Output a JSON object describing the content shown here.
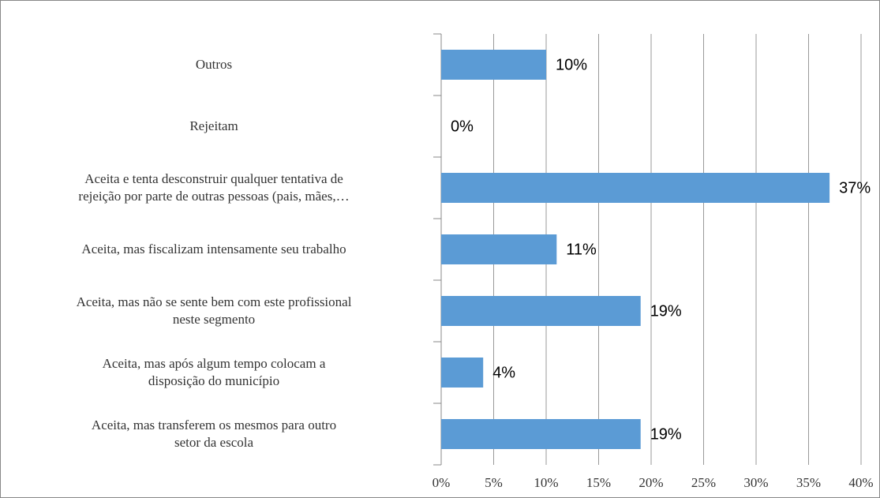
{
  "chart_data": {
    "type": "barh",
    "categories": [
      "Outros",
      "Rejeitam",
      "Aceita e tenta desconstruir qualquer tentativa de\nrejeição por parte de outras pessoas (pais, mães,…",
      "Aceita, mas fiscalizam intensamente seu trabalho",
      "Aceita, mas não se sente bem com este profissional\nneste segmento",
      "Aceita, mas após algum tempo colocam a\ndisposição do município",
      "Aceita, mas transferem os mesmos para outro\nsetor da escola"
    ],
    "values": [
      10,
      0,
      37,
      11,
      19,
      4,
      19
    ],
    "value_labels": [
      "10%",
      "0%",
      "37%",
      "11%",
      "19%",
      "4%",
      "19%"
    ],
    "color": "#5b9bd5",
    "xlim": [
      0,
      40
    ],
    "xticks": [
      {
        "value": 0,
        "label": "0%"
      },
      {
        "value": 5,
        "label": "5%"
      },
      {
        "value": 10,
        "label": "10%"
      },
      {
        "value": 15,
        "label": "15%"
      },
      {
        "value": 20,
        "label": "20%"
      },
      {
        "value": 25,
        "label": "25%"
      },
      {
        "value": 30,
        "label": "30%"
      },
      {
        "value": 35,
        "label": "35%"
      },
      {
        "value": 40,
        "label": "40%"
      }
    ],
    "grid": true
  }
}
